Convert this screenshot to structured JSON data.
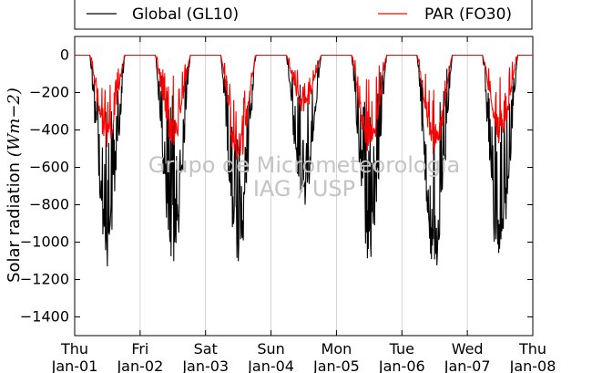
{
  "chart_data": {
    "type": "line",
    "ylabel_text": "Solar radiation ",
    "ylabel_unit": "(Wm−2)",
    "ylim": [
      -1500,
      100
    ],
    "yticks": [
      0,
      -200,
      -400,
      -600,
      -800,
      -1000,
      -1200,
      -1400
    ],
    "xlim": [
      "2015-01-01",
      "2015-01-08"
    ],
    "grid": "vertical",
    "legend_location": "top, above plot",
    "xtick_labels": [
      {
        "day": "Thu",
        "date": "Jan-01"
      },
      {
        "day": "Fri",
        "date": "Jan-02"
      },
      {
        "day": "Sat",
        "date": "Jan-03"
      },
      {
        "day": "Sun",
        "date": "Jan-04"
      },
      {
        "day": "Mon",
        "date": "Jan-05"
      },
      {
        "day": "Tue",
        "date": "Jan-06"
      },
      {
        "day": "Wed",
        "date": "Jan-07"
      },
      {
        "day": "Thu",
        "date": "Jan-08"
      }
    ],
    "series": [
      {
        "name": "Global (GL10)",
        "color": "#000000",
        "daily_minimum": [
          -1130,
          -1110,
          -1140,
          -810,
          -1100,
          -1180,
          -1170
        ]
      },
      {
        "name": "PAR (FO30)",
        "color": "#ff0000",
        "daily_minimum": [
          -490,
          -480,
          -590,
          -300,
          -520,
          -530,
          -470
        ]
      }
    ]
  },
  "watermark": {
    "line1": "Grupo de Micrometeorologia",
    "line2": "IAG / USP"
  }
}
